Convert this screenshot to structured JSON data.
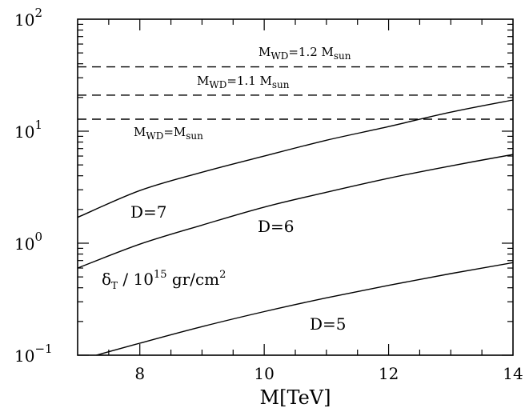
{
  "chart_data": {
    "type": "line",
    "x_scale": "linear",
    "y_scale": "log",
    "xlim": [
      7,
      14
    ],
    "ylim": [
      0.1,
      100
    ],
    "xlabel": "M[TeV]",
    "ylabel": "",
    "x_ticks": [
      {
        "value": 8,
        "label": "8"
      },
      {
        "value": 10,
        "label": "10"
      },
      {
        "value": 12,
        "label": "12"
      },
      {
        "value": 14,
        "label": "14"
      }
    ],
    "y_ticks": [
      {
        "value": 0.1,
        "base": "10",
        "exp": "−1"
      },
      {
        "value": 1,
        "base": "10",
        "exp": "0"
      },
      {
        "value": 10,
        "base": "10",
        "exp": "1"
      },
      {
        "value": 100,
        "base": "10",
        "exp": "2"
      }
    ],
    "series": [
      {
        "name": "D=5",
        "style": "solid",
        "x": [
          7.3,
          8,
          9,
          10,
          11,
          12,
          13,
          14
        ],
        "y": [
          0.1,
          0.128,
          0.18,
          0.245,
          0.325,
          0.42,
          0.535,
          0.67
        ]
      },
      {
        "name": "D=6",
        "style": "solid",
        "x": [
          7,
          8,
          9,
          10,
          11,
          12,
          13,
          14
        ],
        "y": [
          0.6,
          0.98,
          1.45,
          2.1,
          2.85,
          3.8,
          4.9,
          6.2
        ]
      },
      {
        "name": "D=7",
        "style": "solid",
        "x": [
          7,
          8,
          9,
          10,
          11,
          12,
          13,
          14
        ],
        "y": [
          1.7,
          2.95,
          4.3,
          6.0,
          8.3,
          11.0,
          14.8,
          19.0
        ]
      },
      {
        "name": "M_WD = M_sun",
        "style": "dashed",
        "x": [
          7,
          14
        ],
        "y": [
          12.8,
          12.8
        ]
      },
      {
        "name": "M_WD = 1.1 M_sun",
        "style": "dashed",
        "x": [
          7,
          14
        ],
        "y": [
          21.0,
          21.0
        ]
      },
      {
        "name": "M_WD = 1.2 M_sun",
        "style": "dashed",
        "x": [
          7,
          14
        ],
        "y": [
          37.5,
          37.5
        ]
      }
    ],
    "annotations": {
      "d7": "D=7",
      "d6": "D=6",
      "d5": "D=5",
      "quantity_symbol": "δ",
      "quantity_sub": "T",
      "quantity_text": " / 10",
      "quantity_exp": "15",
      "quantity_unit": " gr/cm",
      "quantity_unit_exp": "2",
      "m_prefix": "M",
      "m_sub": "WD",
      "m_sun_sub": "sun",
      "wd1_mid": "=M",
      "wd11_mid": "=1.1 M",
      "wd12_mid": "=1.2 M"
    },
    "grid": false,
    "legend": "none"
  }
}
